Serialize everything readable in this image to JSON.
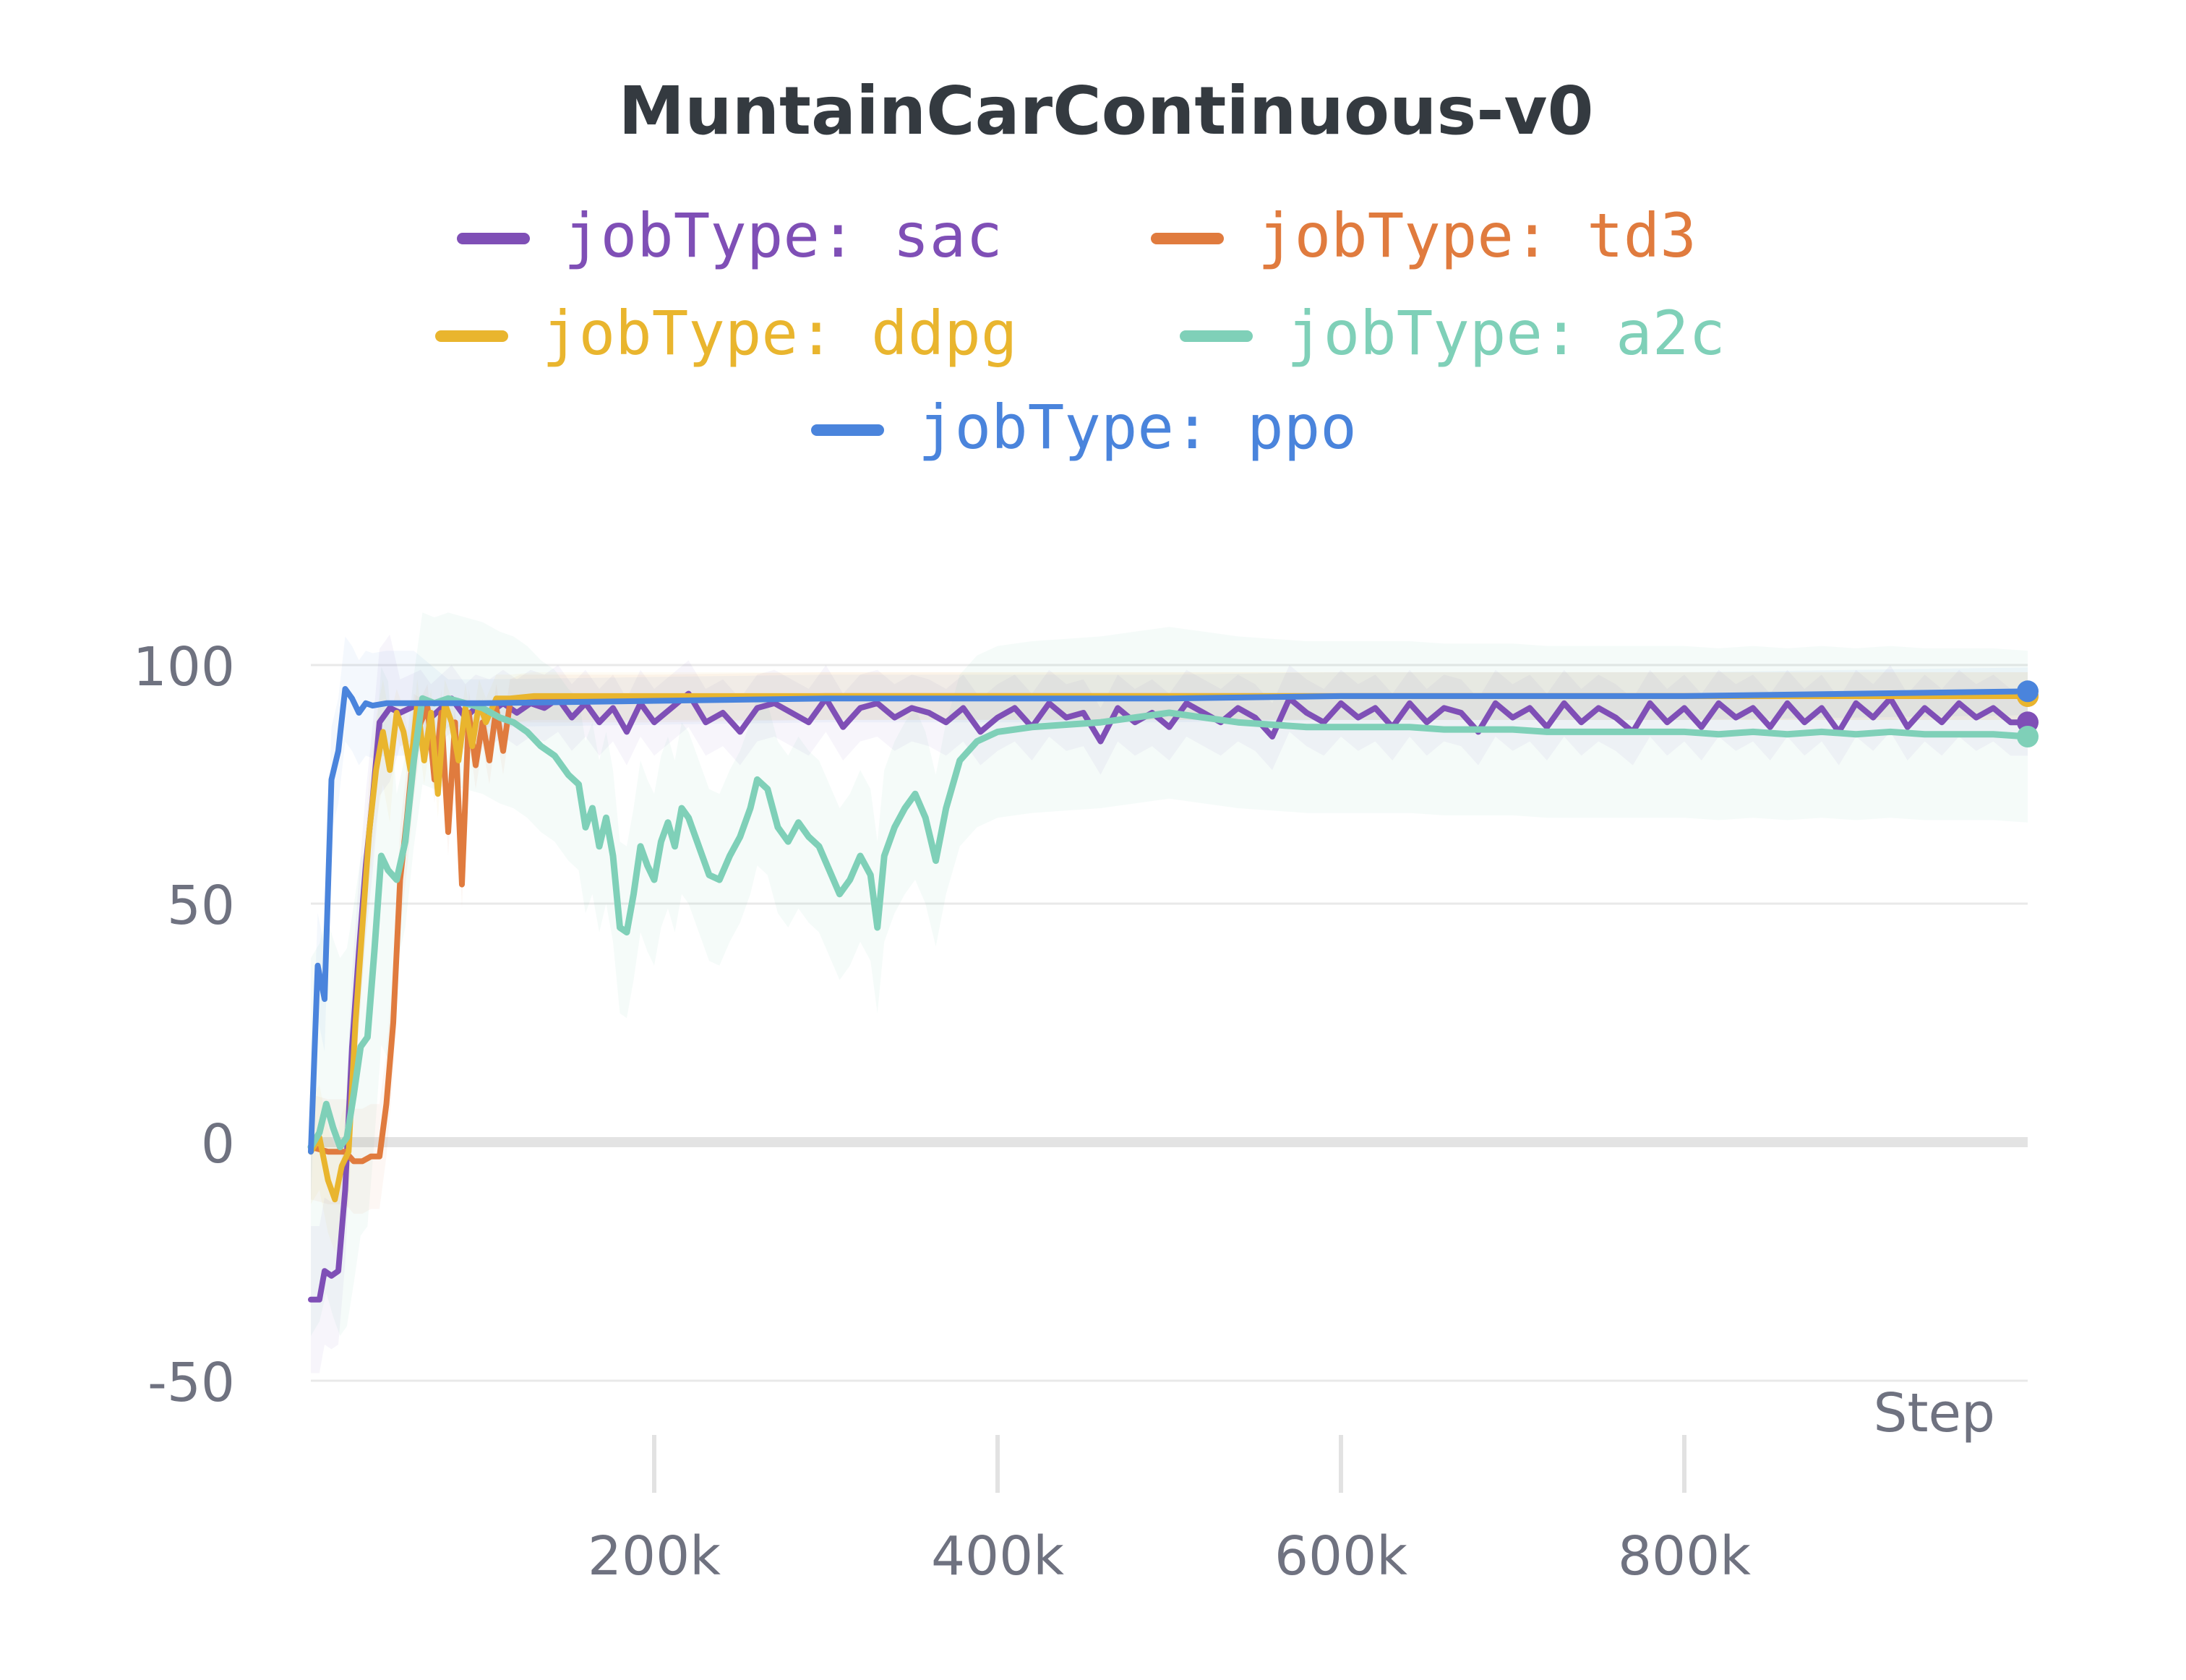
{
  "chart_data": {
    "type": "line",
    "title": "MuntainCarContinuous-v0",
    "xlabel": "Step",
    "ylabel": "",
    "xlim": [
      0,
      1000000
    ],
    "ylim": [
      -50,
      100
    ],
    "x_ticks": [
      "200k",
      "400k",
      "600k",
      "800k"
    ],
    "x_tick_values": [
      200000,
      400000,
      600000,
      800000
    ],
    "y_ticks": [
      "-50",
      "0",
      "50",
      "100"
    ],
    "y_tick_values": [
      -50,
      0,
      50,
      100
    ],
    "grid": true,
    "legend_position": "top-center",
    "series": [
      {
        "name": "jobType: sac",
        "color": "#7f4fb6",
        "points": [
          [
            0,
            -33
          ],
          [
            5000,
            -33
          ],
          [
            8000,
            -27
          ],
          [
            12000,
            -28
          ],
          [
            16000,
            -27
          ],
          [
            20000,
            -10
          ],
          [
            24000,
            20
          ],
          [
            28000,
            40
          ],
          [
            32000,
            58
          ],
          [
            36000,
            72
          ],
          [
            40000,
            88
          ],
          [
            46000,
            91
          ],
          [
            52000,
            90
          ],
          [
            58000,
            91
          ],
          [
            64000,
            92
          ],
          [
            70000,
            89
          ],
          [
            76000,
            91
          ],
          [
            82000,
            93
          ],
          [
            90000,
            89
          ],
          [
            96000,
            91
          ],
          [
            104000,
            90
          ],
          [
            112000,
            92
          ],
          [
            120000,
            90
          ],
          [
            128000,
            92
          ],
          [
            136000,
            91
          ],
          [
            144000,
            93
          ],
          [
            152000,
            89
          ],
          [
            160000,
            92
          ],
          [
            168000,
            88
          ],
          [
            176000,
            91
          ],
          [
            184000,
            86
          ],
          [
            192000,
            92
          ],
          [
            200000,
            88
          ],
          [
            210000,
            91
          ],
          [
            220000,
            94
          ],
          [
            230000,
            88
          ],
          [
            240000,
            90
          ],
          [
            250000,
            86
          ],
          [
            260000,
            91
          ],
          [
            270000,
            92
          ],
          [
            280000,
            90
          ],
          [
            290000,
            88
          ],
          [
            300000,
            93
          ],
          [
            310000,
            87
          ],
          [
            320000,
            91
          ],
          [
            330000,
            92
          ],
          [
            340000,
            89
          ],
          [
            350000,
            91
          ],
          [
            360000,
            90
          ],
          [
            370000,
            88
          ],
          [
            380000,
            91
          ],
          [
            390000,
            86
          ],
          [
            400000,
            89
          ],
          [
            410000,
            91
          ],
          [
            420000,
            87
          ],
          [
            430000,
            92
          ],
          [
            440000,
            89
          ],
          [
            450000,
            90
          ],
          [
            460000,
            84
          ],
          [
            470000,
            91
          ],
          [
            480000,
            88
          ],
          [
            490000,
            90
          ],
          [
            500000,
            87
          ],
          [
            510000,
            92
          ],
          [
            520000,
            90
          ],
          [
            530000,
            88
          ],
          [
            540000,
            91
          ],
          [
            550000,
            89
          ],
          [
            560000,
            85
          ],
          [
            570000,
            93
          ],
          [
            580000,
            90
          ],
          [
            590000,
            88
          ],
          [
            600000,
            92
          ],
          [
            610000,
            89
          ],
          [
            620000,
            91
          ],
          [
            630000,
            87
          ],
          [
            640000,
            92
          ],
          [
            650000,
            88
          ],
          [
            660000,
            91
          ],
          [
            670000,
            90
          ],
          [
            680000,
            86
          ],
          [
            690000,
            92
          ],
          [
            700000,
            89
          ],
          [
            710000,
            91
          ],
          [
            720000,
            87
          ],
          [
            730000,
            92
          ],
          [
            740000,
            88
          ],
          [
            750000,
            91
          ],
          [
            760000,
            89
          ],
          [
            770000,
            86
          ],
          [
            780000,
            92
          ],
          [
            790000,
            88
          ],
          [
            800000,
            91
          ],
          [
            810000,
            87
          ],
          [
            820000,
            92
          ],
          [
            830000,
            89
          ],
          [
            840000,
            91
          ],
          [
            850000,
            87
          ],
          [
            860000,
            92
          ],
          [
            870000,
            88
          ],
          [
            880000,
            91
          ],
          [
            890000,
            86
          ],
          [
            900000,
            92
          ],
          [
            910000,
            89
          ],
          [
            920000,
            93
          ],
          [
            930000,
            87
          ],
          [
            940000,
            91
          ],
          [
            950000,
            88
          ],
          [
            960000,
            92
          ],
          [
            970000,
            89
          ],
          [
            980000,
            91
          ],
          [
            990000,
            88
          ],
          [
            1000000,
            88
          ]
        ]
      },
      {
        "name": "jobType: td3",
        "color": "#e07b3e",
        "points": [
          [
            0,
            -1
          ],
          [
            10000,
            -2
          ],
          [
            20000,
            -2
          ],
          [
            25000,
            -4
          ],
          [
            30000,
            -4
          ],
          [
            35000,
            -3
          ],
          [
            40000,
            -3
          ],
          [
            44000,
            8
          ],
          [
            48000,
            25
          ],
          [
            52000,
            55
          ],
          [
            56000,
            68
          ],
          [
            60000,
            83
          ],
          [
            64000,
            88
          ],
          [
            68000,
            91
          ],
          [
            72000,
            76
          ],
          [
            76000,
            90
          ],
          [
            80000,
            65
          ],
          [
            84000,
            88
          ],
          [
            88000,
            54
          ],
          [
            92000,
            90
          ],
          [
            96000,
            79
          ],
          [
            100000,
            88
          ],
          [
            104000,
            80
          ],
          [
            108000,
            91
          ],
          [
            112000,
            82
          ],
          [
            116000,
            92
          ],
          [
            122000,
            93
          ],
          [
            130000,
            93
          ],
          [
            150000,
            93
          ],
          [
            200000,
            93
          ],
          [
            300000,
            93.5
          ],
          [
            400000,
            93.5
          ],
          [
            500000,
            93.5
          ],
          [
            600000,
            93.5
          ],
          [
            700000,
            93.5
          ],
          [
            800000,
            93.5
          ],
          [
            900000,
            93.5
          ],
          [
            1000000,
            93.5
          ]
        ]
      },
      {
        "name": "jobType: ddpg",
        "color": "#e9b52e",
        "points": [
          [
            0,
            -2
          ],
          [
            5000,
            1
          ],
          [
            10000,
            -8
          ],
          [
            14000,
            -12
          ],
          [
            18000,
            -5
          ],
          [
            22000,
            -2
          ],
          [
            26000,
            25
          ],
          [
            30000,
            45
          ],
          [
            34000,
            65
          ],
          [
            38000,
            78
          ],
          [
            42000,
            86
          ],
          [
            46000,
            78
          ],
          [
            50000,
            90
          ],
          [
            54000,
            86
          ],
          [
            58000,
            78
          ],
          [
            62000,
            92
          ],
          [
            66000,
            80
          ],
          [
            70000,
            90
          ],
          [
            74000,
            73
          ],
          [
            78000,
            92
          ],
          [
            82000,
            88
          ],
          [
            86000,
            80
          ],
          [
            90000,
            91
          ],
          [
            94000,
            83
          ],
          [
            98000,
            92
          ],
          [
            102000,
            88
          ],
          [
            108000,
            93
          ],
          [
            116000,
            93
          ],
          [
            130000,
            93.5
          ],
          [
            200000,
            93.5
          ],
          [
            400000,
            93.5
          ],
          [
            600000,
            93.5
          ],
          [
            800000,
            93.5
          ],
          [
            1000000,
            93.5
          ]
        ]
      },
      {
        "name": "jobType: a2c",
        "color": "#7fd0b8",
        "points": [
          [
            0,
            -1
          ],
          [
            5000,
            2
          ],
          [
            9000,
            8
          ],
          [
            13000,
            3
          ],
          [
            17000,
            -1
          ],
          [
            21000,
            1
          ],
          [
            25000,
            10
          ],
          [
            29000,
            20
          ],
          [
            33000,
            22
          ],
          [
            37000,
            40
          ],
          [
            41000,
            60
          ],
          [
            45000,
            57
          ],
          [
            50000,
            55
          ],
          [
            55000,
            63
          ],
          [
            60000,
            80
          ],
          [
            65000,
            93
          ],
          [
            72000,
            92
          ],
          [
            80000,
            93
          ],
          [
            90000,
            92
          ],
          [
            100000,
            91
          ],
          [
            110000,
            89
          ],
          [
            118000,
            88
          ],
          [
            126000,
            86
          ],
          [
            134000,
            83
          ],
          [
            142000,
            81
          ],
          [
            150000,
            77
          ],
          [
            156000,
            75
          ],
          [
            160000,
            66
          ],
          [
            164000,
            70
          ],
          [
            168000,
            62
          ],
          [
            172000,
            68
          ],
          [
            176000,
            60
          ],
          [
            180000,
            45
          ],
          [
            184000,
            44
          ],
          [
            188000,
            52
          ],
          [
            192000,
            62
          ],
          [
            196000,
            58
          ],
          [
            200000,
            55
          ],
          [
            204000,
            63
          ],
          [
            208000,
            67
          ],
          [
            212000,
            62
          ],
          [
            216000,
            70
          ],
          [
            220000,
            68
          ],
          [
            226000,
            62
          ],
          [
            232000,
            56
          ],
          [
            238000,
            55
          ],
          [
            244000,
            60
          ],
          [
            250000,
            64
          ],
          [
            256000,
            70
          ],
          [
            260000,
            76
          ],
          [
            266000,
            74
          ],
          [
            272000,
            66
          ],
          [
            278000,
            63
          ],
          [
            284000,
            67
          ],
          [
            290000,
            64
          ],
          [
            296000,
            62
          ],
          [
            302000,
            57
          ],
          [
            308000,
            52
          ],
          [
            314000,
            55
          ],
          [
            320000,
            60
          ],
          [
            326000,
            56
          ],
          [
            330000,
            45
          ],
          [
            334000,
            60
          ],
          [
            340000,
            66
          ],
          [
            346000,
            70
          ],
          [
            352000,
            73
          ],
          [
            358000,
            68
          ],
          [
            364000,
            59
          ],
          [
            370000,
            70
          ],
          [
            378000,
            80
          ],
          [
            388000,
            84
          ],
          [
            400000,
            86
          ],
          [
            420000,
            87
          ],
          [
            440000,
            87.5
          ],
          [
            460000,
            88
          ],
          [
            480000,
            89
          ],
          [
            500000,
            90
          ],
          [
            520000,
            89
          ],
          [
            540000,
            88
          ],
          [
            560000,
            87.5
          ],
          [
            580000,
            87
          ],
          [
            600000,
            87
          ],
          [
            620000,
            87
          ],
          [
            640000,
            87
          ],
          [
            660000,
            86.5
          ],
          [
            680000,
            86.5
          ],
          [
            700000,
            86.5
          ],
          [
            720000,
            86
          ],
          [
            740000,
            86
          ],
          [
            760000,
            86
          ],
          [
            780000,
            86
          ],
          [
            800000,
            86
          ],
          [
            820000,
            85.5
          ],
          [
            840000,
            86
          ],
          [
            860000,
            85.5
          ],
          [
            880000,
            86
          ],
          [
            900000,
            85.5
          ],
          [
            920000,
            86
          ],
          [
            940000,
            85.5
          ],
          [
            960000,
            85.5
          ],
          [
            980000,
            85.5
          ],
          [
            1000000,
            85
          ]
        ]
      },
      {
        "name": "jobType: ppo",
        "color": "#4a84dc",
        "points": [
          [
            0,
            -2
          ],
          [
            4000,
            37
          ],
          [
            8000,
            30
          ],
          [
            12000,
            76
          ],
          [
            16000,
            82
          ],
          [
            20000,
            95
          ],
          [
            24000,
            93
          ],
          [
            28000,
            90
          ],
          [
            32000,
            92
          ],
          [
            36000,
            91.5
          ],
          [
            44000,
            92
          ],
          [
            60000,
            92
          ],
          [
            80000,
            92
          ],
          [
            100000,
            92
          ],
          [
            200000,
            92.5
          ],
          [
            300000,
            93
          ],
          [
            400000,
            93
          ],
          [
            500000,
            93
          ],
          [
            600000,
            93.5
          ],
          [
            700000,
            93.5
          ],
          [
            800000,
            93.5
          ],
          [
            900000,
            94
          ],
          [
            1000000,
            94.5
          ]
        ]
      }
    ]
  }
}
